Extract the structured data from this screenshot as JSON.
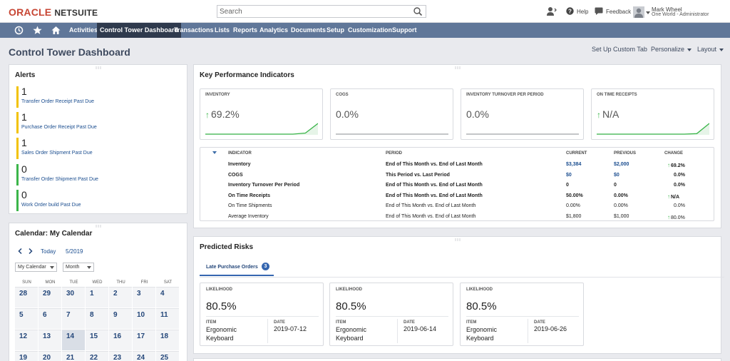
{
  "brand": {
    "oracle": "ORACLE",
    "netsuite": "NETSUITE"
  },
  "search": {
    "placeholder": "Search"
  },
  "header": {
    "help": "Help",
    "feedback": "Feedback",
    "user_name": "Mark Wheel",
    "user_role": "One World - Administrator"
  },
  "nav": {
    "items": [
      "Activities",
      "Control Tower Dashboard",
      "Transactions",
      "Lists",
      "Reports",
      "Analytics",
      "Documents",
      "Setup",
      "Customization",
      "Support"
    ],
    "active": "Control Tower Dashboard"
  },
  "page": {
    "title": "Control Tower Dashboard",
    "setup_tab": "Set Up Custom Tab",
    "personalize": "Personalize",
    "layout": "Layout"
  },
  "alerts": {
    "title": "Alerts",
    "items": [
      {
        "count": "1",
        "label": "Transfer Order Receipt Past Due",
        "status": "warning"
      },
      {
        "count": "1",
        "label": "Purchase Order Receipt Past Due",
        "status": "warning"
      },
      {
        "count": "1",
        "label": "Sales Order Shipment Past Due",
        "status": "warning"
      },
      {
        "count": "0",
        "label": "Transfer Order Shipment Past Due",
        "status": "ok"
      },
      {
        "count": "0",
        "label": "Work Order build Past Due",
        "status": "ok"
      }
    ]
  },
  "calendar": {
    "title": "Calendar: My Calendar",
    "today": "Today",
    "month": "5/2019",
    "calendar_select": "My Calendar",
    "view_select": "Month",
    "weekdays": [
      "SUN",
      "MON",
      "TUE",
      "WED",
      "THU",
      "FRI",
      "SAT"
    ],
    "rows": [
      [
        "28",
        "29",
        "30",
        "1",
        "2",
        "3",
        "4"
      ],
      [
        "5",
        "6",
        "7",
        "8",
        "9",
        "10",
        "11"
      ],
      [
        "12",
        "13",
        "14",
        "15",
        "16",
        "17",
        "18"
      ],
      [
        "19",
        "20",
        "21",
        "22",
        "23",
        "24",
        "25"
      ]
    ],
    "today_date": "14"
  },
  "kpi": {
    "title": "Key Performance Indicators",
    "cards": [
      {
        "label": "INVENTORY",
        "value": "69.2%",
        "trend": "up",
        "sparkline": [
          0,
          0,
          0,
          0,
          0,
          0,
          0,
          0,
          0.1,
          1
        ]
      },
      {
        "label": "COGS",
        "value": "0.0%",
        "trend": "none",
        "sparkline": [
          0,
          0,
          0,
          0,
          0,
          0,
          0,
          0,
          0,
          0
        ]
      },
      {
        "label": "INVENTORY TURNOVER PER PERIOD",
        "value": "0.0%",
        "trend": "none",
        "sparkline": [
          0,
          0,
          0,
          0,
          0,
          0,
          0,
          0,
          0,
          0
        ]
      },
      {
        "label": "ON TIME RECEIPTS",
        "value": "N/A",
        "trend": "up",
        "sparkline": [
          0,
          0,
          0,
          0,
          0,
          0,
          0,
          0,
          0.05,
          1
        ]
      }
    ],
    "table": {
      "headers": {
        "indicator": "INDICATOR",
        "period": "PERIOD",
        "current": "CURRENT",
        "previous": "PREVIOUS",
        "change": "CHANGE"
      },
      "rows": [
        {
          "indicator": "Inventory",
          "period_a": "End of This Month",
          "vs": "vs.",
          "period_b": "End of Last Month",
          "current": "$3,384",
          "previous": "$2,000",
          "change": "69.2%",
          "arrow": true,
          "bold": true,
          "linked": true
        },
        {
          "indicator": "COGS",
          "period_a": "This Period",
          "vs": "vs.",
          "period_b": "Last Period",
          "current": "$0",
          "previous": "$0",
          "change": "0.0%",
          "arrow": false,
          "bold": true,
          "linked": true
        },
        {
          "indicator": "Inventory Turnover Per Period",
          "period_a": "End of This Month",
          "vs": "vs.",
          "period_b": "End of Last Month",
          "current": "0",
          "previous": "0",
          "change": "0.0%",
          "arrow": false,
          "bold": true,
          "linked": false
        },
        {
          "indicator": "On Time Receipts",
          "period_a": "End of This Month",
          "vs": "vs.",
          "period_b": "End of Last Month",
          "current": "50.00%",
          "previous": "0.00%",
          "change": "N/A",
          "arrow": true,
          "bold": true,
          "linked": false
        },
        {
          "indicator": "On Time Shipments",
          "period_a": "End of This Month",
          "vs": "vs.",
          "period_b": "End of Last Month",
          "current": "0.00%",
          "previous": "0.00%",
          "change": "0.0%",
          "arrow": false,
          "bold": false,
          "linked": false
        },
        {
          "indicator": "Average Inventory",
          "period_a": "End of This Month",
          "vs": "vs.",
          "period_b": "End of Last Month",
          "current": "$1,800",
          "previous": "$1,000",
          "change": "80.0%",
          "arrow": true,
          "bold": false,
          "linked": false
        }
      ]
    }
  },
  "risks": {
    "title": "Predicted Risks",
    "tab_label": "Late Purchase Orders",
    "tab_count": "3",
    "cards": [
      {
        "likelihood_label": "LIKELIHOOD",
        "likelihood": "80.5%",
        "item_label": "ITEM",
        "item": "Ergonomic Keyboard",
        "date_label": "DATE",
        "date": "2019-07-12"
      },
      {
        "likelihood_label": "LIKELIHOOD",
        "likelihood": "80.5%",
        "item_label": "ITEM",
        "item": "Ergonomic Keyboard",
        "date_label": "DATE",
        "date": "2019-06-14"
      },
      {
        "likelihood_label": "LIKELIHOOD",
        "likelihood": "80.5%",
        "item_label": "ITEM",
        "item": "Ergonomic Keyboard",
        "date_label": "DATE",
        "date": "2019-06-26"
      }
    ]
  },
  "colors": {
    "nav_bg": "#607799",
    "nav_active": "#2f3a4d",
    "link": "#1a4d8f",
    "positive": "#3bb54a",
    "warning": "#f2c200",
    "tab_accent": "#3566b0"
  }
}
